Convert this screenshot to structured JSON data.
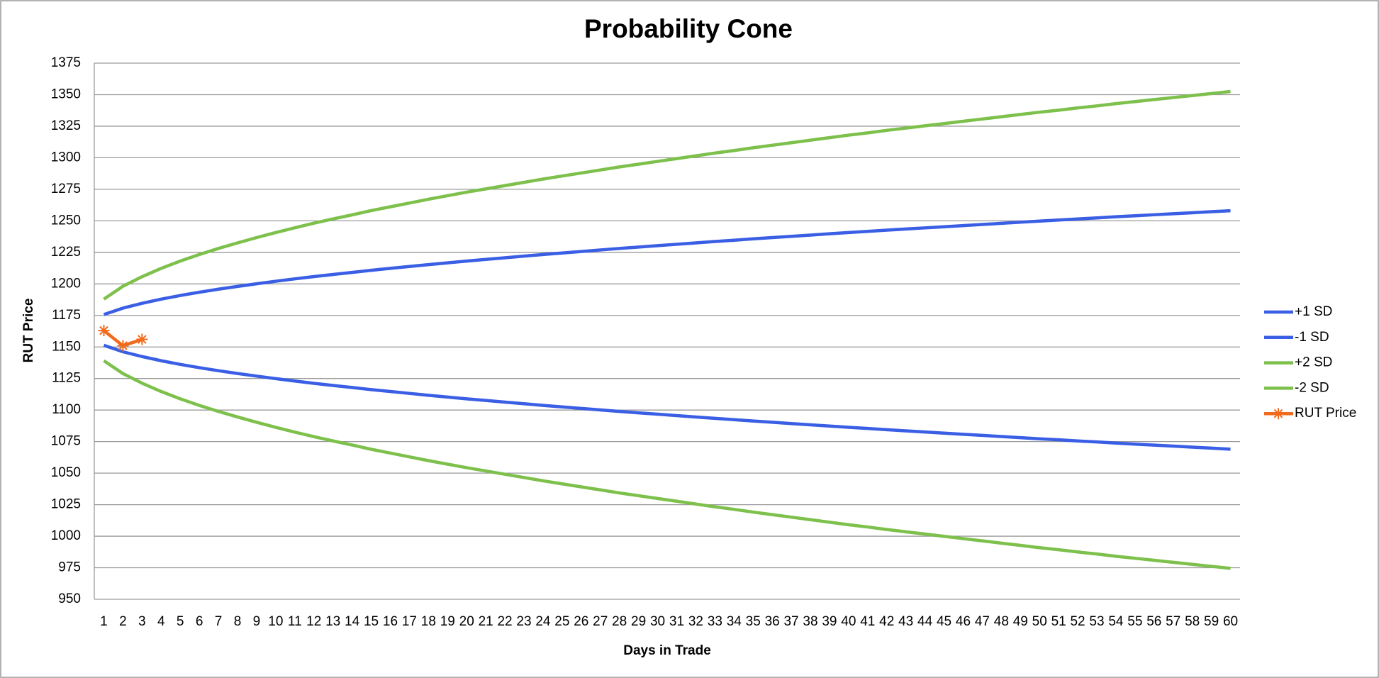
{
  "chart_data": {
    "type": "line",
    "title": "Probability Cone",
    "x_label": "Days in Trade",
    "y_label": "RUT Price",
    "categories": [
      "1",
      "2",
      "3",
      "4",
      "5",
      "6",
      "7",
      "8",
      "9",
      "10",
      "11",
      "12",
      "13",
      "14",
      "15",
      "16",
      "17",
      "18",
      "19",
      "20",
      "21",
      "22",
      "23",
      "24",
      "25",
      "26",
      "27",
      "28",
      "29",
      "30",
      "31",
      "32",
      "33",
      "34",
      "35",
      "36",
      "37",
      "38",
      "39",
      "40",
      "41",
      "42",
      "43",
      "44",
      "45",
      "46",
      "47",
      "48",
      "49",
      "50",
      "51",
      "52",
      "53",
      "54",
      "55",
      "56",
      "57",
      "58",
      "59",
      "60"
    ],
    "ylim": [
      950,
      1375
    ],
    "yticks": [
      950,
      975,
      1000,
      1025,
      1050,
      1075,
      1100,
      1125,
      1150,
      1175,
      1200,
      1225,
      1250,
      1275,
      1300,
      1325,
      1350,
      1375
    ],
    "grid": true,
    "legend": "right",
    "series": [
      {
        "name": "+1 SD",
        "color": "#3a5fe5",
        "values": [
          1175.7,
          1180.8,
          1184.6,
          1187.9,
          1190.8,
          1193.4,
          1195.8,
          1198.0,
          1200.1,
          1202.1,
          1204.0,
          1205.8,
          1207.5,
          1209.1,
          1210.8,
          1212.3,
          1213.8,
          1215.3,
          1216.7,
          1218.1,
          1219.4,
          1220.7,
          1222.0,
          1223.3,
          1224.5,
          1225.7,
          1226.9,
          1228.1,
          1229.2,
          1230.3,
          1231.4,
          1232.5,
          1233.6,
          1234.6,
          1235.7,
          1236.7,
          1237.7,
          1238.7,
          1239.7,
          1240.7,
          1241.6,
          1242.6,
          1243.5,
          1244.4,
          1245.3,
          1246.2,
          1247.1,
          1248.0,
          1248.9,
          1249.8,
          1250.6,
          1251.5,
          1252.3,
          1253.2,
          1254.0,
          1254.8,
          1255.6,
          1256.4,
          1257.2,
          1258.0
        ]
      },
      {
        "name": "-1 SD",
        "color": "#3a5fe5",
        "values": [
          1151.3,
          1146.2,
          1142.4,
          1139.1,
          1136.2,
          1133.6,
          1131.2,
          1129.0,
          1126.9,
          1124.9,
          1123.0,
          1121.2,
          1119.5,
          1117.9,
          1116.2,
          1114.7,
          1113.2,
          1111.7,
          1110.3,
          1108.9,
          1107.6,
          1106.3,
          1105.0,
          1103.7,
          1102.5,
          1101.3,
          1100.1,
          1098.9,
          1097.8,
          1096.7,
          1095.6,
          1094.5,
          1093.4,
          1092.4,
          1091.3,
          1090.3,
          1089.3,
          1088.3,
          1087.3,
          1086.3,
          1085.4,
          1084.4,
          1083.5,
          1082.6,
          1081.7,
          1080.8,
          1079.9,
          1079.0,
          1078.1,
          1077.2,
          1076.4,
          1075.5,
          1074.7,
          1073.8,
          1073.0,
          1072.2,
          1071.4,
          1070.6,
          1069.8,
          1069.0
        ]
      },
      {
        "name": "+2 SD",
        "color": "#7dc04b",
        "values": [
          1187.9,
          1198.1,
          1205.7,
          1212.3,
          1218.1,
          1223.3,
          1228.1,
          1232.5,
          1236.7,
          1240.7,
          1244.5,
          1248.1,
          1251.5,
          1254.7,
          1258.1,
          1261.1,
          1264.1,
          1267.1,
          1269.9,
          1272.7,
          1275.3,
          1277.9,
          1280.5,
          1283.1,
          1285.5,
          1287.9,
          1290.3,
          1292.7,
          1294.9,
          1297.1,
          1299.3,
          1301.5,
          1303.7,
          1305.7,
          1307.9,
          1309.9,
          1311.9,
          1313.9,
          1315.9,
          1317.9,
          1319.7,
          1321.7,
          1323.5,
          1325.3,
          1327.1,
          1328.9,
          1330.7,
          1332.5,
          1334.3,
          1336.1,
          1337.7,
          1339.5,
          1341.1,
          1342.9,
          1344.5,
          1346.1,
          1347.7,
          1349.3,
          1350.9,
          1352.5
        ]
      },
      {
        "name": "-2 SD",
        "color": "#7dc04b",
        "values": [
          1139.1,
          1128.9,
          1121.3,
          1114.7,
          1108.9,
          1103.7,
          1098.9,
          1094.5,
          1090.3,
          1086.3,
          1082.5,
          1078.9,
          1075.5,
          1072.3,
          1068.9,
          1065.9,
          1062.9,
          1059.9,
          1057.1,
          1054.3,
          1051.7,
          1049.1,
          1046.5,
          1043.9,
          1041.5,
          1039.1,
          1036.7,
          1034.3,
          1032.1,
          1029.9,
          1027.7,
          1025.5,
          1023.3,
          1021.3,
          1019.1,
          1017.1,
          1015.1,
          1013.1,
          1011.1,
          1009.1,
          1007.3,
          1005.3,
          1003.5,
          1001.7,
          999.9,
          998.1,
          996.3,
          994.5,
          992.7,
          990.9,
          989.3,
          987.5,
          985.9,
          984.1,
          982.5,
          980.9,
          979.3,
          977.7,
          976.1,
          974.5
        ]
      },
      {
        "name": "RUT Price",
        "color": "#f26b1d",
        "marker": "star",
        "values": [
          1163,
          1151,
          1156,
          null,
          null,
          null,
          null,
          null,
          null,
          null,
          null,
          null,
          null,
          null,
          null,
          null,
          null,
          null,
          null,
          null,
          null,
          null,
          null,
          null,
          null,
          null,
          null,
          null,
          null,
          null,
          null,
          null,
          null,
          null,
          null,
          null,
          null,
          null,
          null,
          null,
          null,
          null,
          null,
          null,
          null,
          null,
          null,
          null,
          null,
          null,
          null,
          null,
          null,
          null,
          null,
          null,
          null,
          null,
          null,
          null
        ]
      }
    ]
  }
}
